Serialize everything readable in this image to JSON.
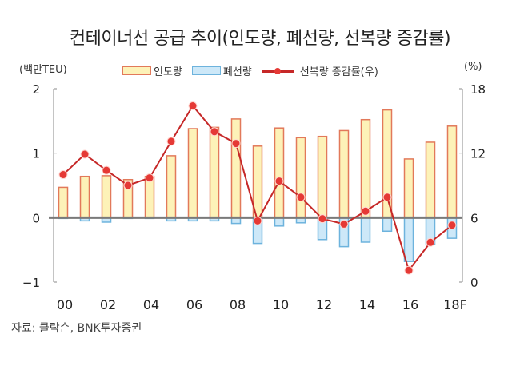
{
  "chart_data": {
    "type": "bar+line",
    "title": "컨테이너선 공급 추이(인도량, 폐선량, 선복량 증감률)",
    "left_axis_label": "(백만TEU)",
    "right_axis_label": "(%)",
    "left_ylim": [
      -1,
      2
    ],
    "left_ticks": [
      "2",
      "1",
      "0",
      "−1"
    ],
    "left_tick_values": [
      2,
      1,
      0,
      -1
    ],
    "right_ylim": [
      0,
      18
    ],
    "right_ticks": [
      "18",
      "12",
      "6",
      "0"
    ],
    "right_tick_values": [
      18,
      12,
      6,
      0
    ],
    "categories": [
      "00",
      "01",
      "02",
      "03",
      "04",
      "05",
      "06",
      "07",
      "08",
      "09",
      "10",
      "11",
      "12",
      "13",
      "14",
      "15",
      "16",
      "17",
      "18F"
    ],
    "x_tick_labels": [
      "00",
      "02",
      "04",
      "06",
      "08",
      "10",
      "12",
      "14",
      "16",
      "18F"
    ],
    "series": [
      {
        "name": "인도량",
        "type": "bar",
        "axis": "left",
        "values": [
          0.47,
          0.64,
          0.65,
          0.59,
          0.64,
          0.96,
          1.38,
          1.4,
          1.53,
          1.11,
          1.39,
          1.24,
          1.26,
          1.35,
          1.52,
          1.67,
          0.91,
          1.17,
          1.42
        ]
      },
      {
        "name": "폐선량",
        "type": "bar",
        "axis": "left",
        "values": [
          -0.01,
          -0.05,
          -0.07,
          -0.01,
          -0.01,
          -0.05,
          -0.05,
          -0.05,
          -0.09,
          -0.4,
          -0.13,
          -0.08,
          -0.34,
          -0.45,
          -0.38,
          -0.21,
          -0.68,
          -0.42,
          -0.32
        ]
      },
      {
        "name": "선복량 증감률(우)",
        "type": "line",
        "axis": "right",
        "values": [
          10.0,
          11.9,
          10.4,
          9.0,
          9.7,
          13.1,
          16.4,
          14.0,
          12.9,
          5.7,
          9.4,
          7.9,
          5.9,
          5.4,
          6.6,
          7.9,
          1.1,
          3.7,
          5.3
        ]
      }
    ],
    "legend_placement": "top-center",
    "grid": false
  },
  "colors": {
    "delivery_fill": "#fdf2b8",
    "delivery_stroke": "#e2795a",
    "scrap_fill": "#cde8f8",
    "scrap_stroke": "#6db3dd",
    "line": "#c62828",
    "marker": "#e53935",
    "zero_line": "#7a7a7a",
    "axis": "#8a8a8a"
  },
  "legend": {
    "delivery": "인도량",
    "scrap": "폐선량",
    "growth": "선복량 증감률(우)"
  },
  "source": "자료: 클락슨, BNK투자증권"
}
